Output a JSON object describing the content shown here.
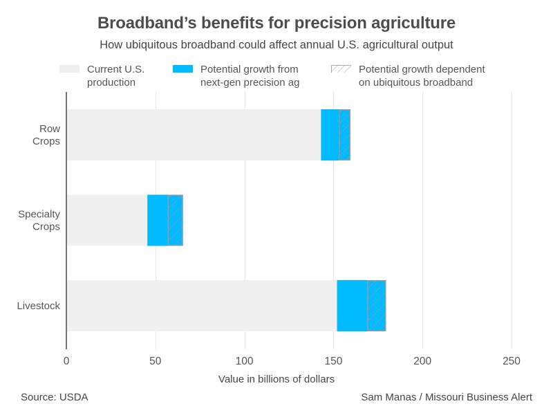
{
  "title": "Broadband’s benefits for precision agriculture",
  "subtitle": "How ubiquitous broadband could affect annual U.S. agricultural output",
  "legend": [
    {
      "label_line1": "Current U.S.",
      "label_line2": "production",
      "color": "#f0f0f0",
      "pattern": "solid"
    },
    {
      "label_line1": "Potential growth from",
      "label_line2": "next-gen precision ag",
      "color": "#00bbff",
      "pattern": "solid"
    },
    {
      "label_line1": "Potential growth dependent",
      "label_line2": "on ubiquitous broadband",
      "color": "#00bbff",
      "pattern": "hatched"
    }
  ],
  "footer": {
    "source": "Source: USDA",
    "credit": "Sam Manas / Missouri Business Alert"
  },
  "chart_data": {
    "type": "bar",
    "orientation": "horizontal",
    "stacked": true,
    "title": "Broadband’s benefits for precision agriculture",
    "subtitle": "How ubiquitous broadband could affect annual U.S. agricultural output",
    "categories": [
      [
        "Row",
        "Crops"
      ],
      [
        "Specialty",
        "Crops"
      ],
      [
        "Livestock"
      ]
    ],
    "category_names": [
      "Row Crops",
      "Specialty Crops",
      "Livestock"
    ],
    "series": [
      {
        "name": "Current U.S. production",
        "values": [
          143,
          45.5,
          152
        ],
        "color": "#f0f0f0",
        "pattern": "solid"
      },
      {
        "name": "Potential growth from next-gen precision ag",
        "values": [
          10,
          11.5,
          17
        ],
        "color": "#00bbff",
        "pattern": "solid"
      },
      {
        "name": "Potential growth dependent on ubiquitous broadband",
        "values": [
          6.5,
          8.5,
          10.5
        ],
        "color": "#00bbff",
        "pattern": "hatched"
      }
    ],
    "xlabel": "Value in billions of dollars",
    "ylabel": "",
    "xlim": [
      0,
      250
    ],
    "xticks": [
      0,
      50,
      100,
      150,
      200,
      250
    ],
    "grid": true,
    "legend_position": "top"
  }
}
